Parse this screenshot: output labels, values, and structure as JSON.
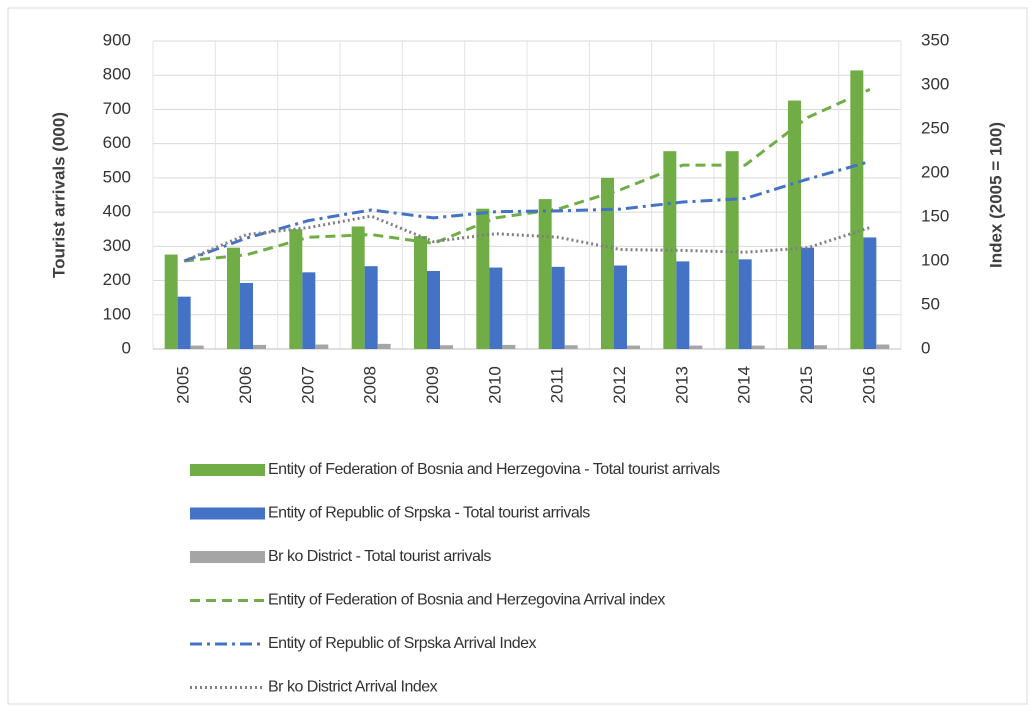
{
  "chart_data": {
    "type": "bar",
    "ylabel": "Tourist arrivals (000)",
    "y2label": "Index (2005 = 100)",
    "categories": [
      "2005",
      "2006",
      "2007",
      "2008",
      "2009",
      "2010",
      "2011",
      "2012",
      "2013",
      "2014",
      "2015",
      "2016"
    ],
    "ylim": [
      0,
      900
    ],
    "yticks": [
      0,
      100,
      200,
      300,
      400,
      500,
      600,
      700,
      800,
      900
    ],
    "y2lim": [
      0,
      350
    ],
    "y2ticks": [
      0,
      50,
      100,
      150,
      200,
      250,
      300,
      350
    ],
    "grid": true,
    "legend": "bottom",
    "series": [
      {
        "name": "Entity of Federation of Bosnia and Herzegovina - Total tourist arrivals",
        "type": "bar",
        "color": "#70ad47",
        "values": [
          276,
          296,
          350,
          358,
          330,
          410,
          438,
          500,
          578,
          578,
          726,
          814
        ]
      },
      {
        "name": "Entity of Republic of Srpska - Total tourist arrivals",
        "type": "bar",
        "color": "#4472c4",
        "values": [
          153,
          193,
          224,
          242,
          228,
          238,
          240,
          244,
          256,
          262,
          296,
          326
        ]
      },
      {
        "name": "Br ko District - Total tourist arrivals",
        "type": "bar",
        "color": "#a5a5a5",
        "values": [
          10,
          12,
          13,
          15,
          11,
          12,
          11,
          10,
          10,
          10,
          11,
          13
        ]
      },
      {
        "name": "Entity of Federation of Bosnia and Herzegovina Arrival index",
        "type": "line",
        "axis": "y2",
        "color": "#70ad47",
        "line_style": "dashed",
        "values": [
          100,
          107,
          127,
          130,
          120,
          149,
          159,
          181,
          209,
          209,
          263,
          295
        ]
      },
      {
        "name": "Entity of Republic of Srpska Arrival Index",
        "type": "line",
        "axis": "y2",
        "color": "#4472c4",
        "line_style": "dashdot",
        "values": [
          100,
          126,
          146,
          158,
          149,
          156,
          157,
          159,
          167,
          171,
          193,
          213
        ]
      },
      {
        "name": "Br ko District Arrival Index",
        "type": "line",
        "axis": "y2",
        "color": "#7f7f7f",
        "line_style": "dotted",
        "values": [
          100,
          130,
          138,
          151,
          122,
          131,
          127,
          113,
          112,
          110,
          115,
          138
        ]
      }
    ]
  }
}
